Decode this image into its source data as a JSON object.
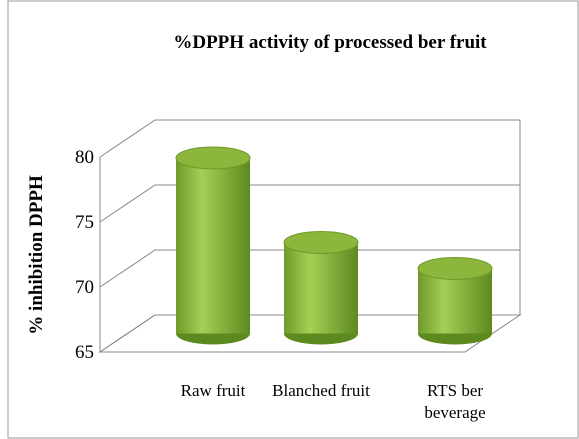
{
  "chart_data": {
    "type": "bar3d",
    "title": "%DPPH activity of processed ber fruit",
    "y_label": "% inhibition DPPH",
    "categories": [
      "Raw fruit",
      "Blanched fruit",
      "RTS ber beverage"
    ],
    "values": [
      78.5,
      72,
      70
    ],
    "color": "#8db63c",
    "ylim": [
      65,
      80
    ],
    "yticks": [
      65,
      70,
      75,
      80
    ],
    "grid": true
  }
}
